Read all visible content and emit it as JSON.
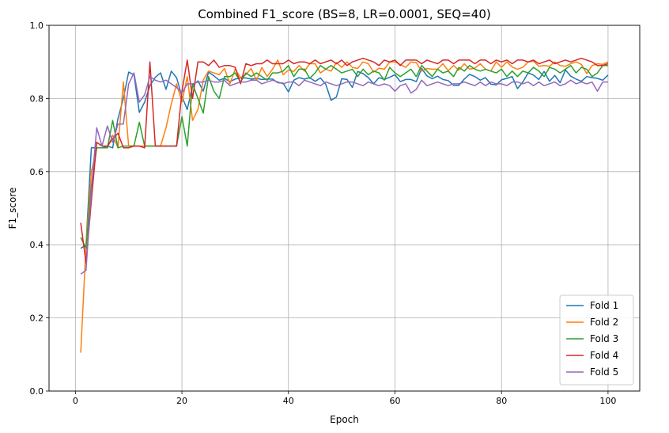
{
  "chart_data": {
    "type": "line",
    "title": "Combined F1_score (BS=8, LR=0.0001, SEQ=40)",
    "xlabel": "Epoch",
    "ylabel": "F1_score",
    "xlim": [
      -4.95,
      105.95
    ],
    "ylim": [
      0.0,
      1.0
    ],
    "xticks": [
      0,
      20,
      40,
      60,
      80,
      100
    ],
    "yticks": [
      0.0,
      0.2,
      0.4,
      0.6,
      0.8,
      1.0
    ],
    "xtick_labels": [
      "0",
      "20",
      "40",
      "60",
      "80",
      "100"
    ],
    "ytick_labels": [
      "0.0",
      "0.2",
      "0.4",
      "0.6",
      "0.8",
      "1.0"
    ],
    "grid": true,
    "legend_position": "bottom-right",
    "series": [
      {
        "name": "Fold 1",
        "color": "#1f77b4",
        "x": [
          1,
          2,
          3,
          4,
          5,
          6,
          7,
          8,
          9,
          10,
          11,
          12,
          13,
          14,
          15,
          16,
          17,
          18,
          19,
          20,
          21,
          22,
          23,
          24,
          25,
          26,
          27,
          28,
          29,
          30,
          31,
          32,
          33,
          34,
          35,
          36,
          37,
          38,
          39,
          40,
          41,
          42,
          43,
          44,
          45,
          46,
          47,
          48,
          49,
          50,
          51,
          52,
          53,
          54,
          55,
          56,
          57,
          58,
          59,
          60,
          61,
          62,
          63,
          64,
          65,
          66,
          67,
          68,
          69,
          70,
          71,
          72,
          73,
          74,
          75,
          76,
          77,
          78,
          79,
          80,
          81,
          82,
          83,
          84,
          85,
          86,
          87,
          88,
          89,
          90,
          91,
          92,
          93,
          94,
          95,
          96,
          97,
          98,
          99,
          100
        ],
        "values": [
          0.39,
          0.4,
          0.665,
          0.665,
          0.665,
          0.67,
          0.665,
          0.745,
          0.8,
          0.872,
          0.865,
          0.762,
          0.79,
          0.835,
          0.858,
          0.87,
          0.825,
          0.875,
          0.857,
          0.805,
          0.77,
          0.835,
          0.848,
          0.82,
          0.872,
          0.862,
          0.85,
          0.855,
          0.846,
          0.853,
          0.856,
          0.856,
          0.853,
          0.855,
          0.852,
          0.853,
          0.853,
          0.843,
          0.842,
          0.818,
          0.85,
          0.857,
          0.853,
          0.857,
          0.847,
          0.856,
          0.839,
          0.795,
          0.804,
          0.854,
          0.852,
          0.83,
          0.874,
          0.868,
          0.857,
          0.84,
          0.857,
          0.852,
          0.858,
          0.865,
          0.846,
          0.852,
          0.852,
          0.846,
          0.882,
          0.862,
          0.854,
          0.861,
          0.852,
          0.849,
          0.836,
          0.836,
          0.853,
          0.866,
          0.86,
          0.85,
          0.857,
          0.839,
          0.837,
          0.851,
          0.855,
          0.86,
          0.827,
          0.845,
          0.87,
          0.864,
          0.852,
          0.874,
          0.847,
          0.863,
          0.843,
          0.878,
          0.861,
          0.853,
          0.847,
          0.86,
          0.857,
          0.855,
          0.85,
          0.864
        ]
      },
      {
        "name": "Fold 2",
        "color": "#ff7f0e",
        "x": [
          1,
          2,
          3,
          4,
          5,
          6,
          7,
          8,
          9,
          10,
          11,
          12,
          13,
          14,
          15,
          16,
          17,
          18,
          19,
          20,
          21,
          22,
          23,
          24,
          25,
          26,
          27,
          28,
          29,
          30,
          31,
          32,
          33,
          34,
          35,
          36,
          37,
          38,
          39,
          40,
          41,
          42,
          43,
          44,
          45,
          46,
          47,
          48,
          49,
          50,
          51,
          52,
          53,
          54,
          55,
          56,
          57,
          58,
          59,
          60,
          61,
          62,
          63,
          64,
          65,
          66,
          67,
          68,
          69,
          70,
          71,
          72,
          73,
          74,
          75,
          76,
          77,
          78,
          79,
          80,
          81,
          82,
          83,
          84,
          85,
          86,
          87,
          88,
          89,
          90,
          91,
          92,
          93,
          94,
          95,
          96,
          97,
          98,
          99,
          100
        ],
        "values": [
          0.105,
          0.4,
          0.6,
          0.665,
          0.665,
          0.665,
          0.7,
          0.665,
          0.845,
          0.67,
          0.67,
          0.67,
          0.67,
          0.67,
          0.67,
          0.67,
          0.72,
          0.785,
          0.84,
          0.79,
          0.86,
          0.74,
          0.77,
          0.85,
          0.875,
          0.87,
          0.865,
          0.882,
          0.84,
          0.88,
          0.857,
          0.865,
          0.882,
          0.85,
          0.885,
          0.86,
          0.88,
          0.905,
          0.865,
          0.878,
          0.874,
          0.89,
          0.875,
          0.895,
          0.895,
          0.87,
          0.88,
          0.875,
          0.898,
          0.885,
          0.9,
          0.885,
          0.882,
          0.9,
          0.895,
          0.872,
          0.883,
          0.88,
          0.9,
          0.9,
          0.893,
          0.885,
          0.9,
          0.898,
          0.875,
          0.882,
          0.88,
          0.88,
          0.895,
          0.876,
          0.89,
          0.877,
          0.895,
          0.88,
          0.883,
          0.895,
          0.88,
          0.875,
          0.9,
          0.885,
          0.9,
          0.886,
          0.88,
          0.885,
          0.9,
          0.902,
          0.888,
          0.89,
          0.888,
          0.9,
          0.89,
          0.888,
          0.895,
          0.9,
          0.893,
          0.868,
          0.89,
          0.895,
          0.893,
          0.9
        ]
      },
      {
        "name": "Fold 3",
        "color": "#2ca02c",
        "x": [
          1,
          2,
          3,
          4,
          5,
          6,
          7,
          8,
          9,
          10,
          11,
          12,
          13,
          14,
          15,
          16,
          17,
          18,
          19,
          20,
          21,
          22,
          23,
          24,
          25,
          26,
          27,
          28,
          29,
          30,
          31,
          32,
          33,
          34,
          35,
          36,
          37,
          38,
          39,
          40,
          41,
          42,
          43,
          44,
          45,
          46,
          47,
          48,
          49,
          50,
          51,
          52,
          53,
          54,
          55,
          56,
          57,
          58,
          59,
          60,
          61,
          62,
          63,
          64,
          65,
          66,
          67,
          68,
          69,
          70,
          71,
          72,
          73,
          74,
          75,
          76,
          77,
          78,
          79,
          80,
          81,
          82,
          83,
          84,
          85,
          86,
          87,
          88,
          89,
          90,
          91,
          92,
          93,
          94,
          95,
          96,
          97,
          98,
          99,
          100
        ],
        "values": [
          0.42,
          0.39,
          0.56,
          0.665,
          0.665,
          0.665,
          0.74,
          0.665,
          0.67,
          0.67,
          0.67,
          0.735,
          0.67,
          0.67,
          0.67,
          0.67,
          0.67,
          0.67,
          0.67,
          0.75,
          0.67,
          0.84,
          0.8,
          0.76,
          0.86,
          0.82,
          0.8,
          0.86,
          0.86,
          0.87,
          0.845,
          0.87,
          0.86,
          0.87,
          0.86,
          0.85,
          0.87,
          0.87,
          0.875,
          0.89,
          0.86,
          0.88,
          0.88,
          0.855,
          0.87,
          0.89,
          0.88,
          0.89,
          0.88,
          0.87,
          0.875,
          0.88,
          0.86,
          0.88,
          0.865,
          0.875,
          0.87,
          0.85,
          0.885,
          0.87,
          0.86,
          0.87,
          0.88,
          0.86,
          0.89,
          0.875,
          0.86,
          0.88,
          0.87,
          0.875,
          0.86,
          0.885,
          0.875,
          0.89,
          0.88,
          0.875,
          0.88,
          0.875,
          0.87,
          0.88,
          0.86,
          0.875,
          0.86,
          0.875,
          0.87,
          0.885,
          0.875,
          0.86,
          0.885,
          0.88,
          0.87,
          0.88,
          0.89,
          0.87,
          0.885,
          0.88,
          0.86,
          0.87,
          0.89,
          0.89
        ]
      },
      {
        "name": "Fold 4",
        "color": "#d62728",
        "x": [
          1,
          2,
          3,
          4,
          5,
          6,
          7,
          8,
          9,
          10,
          11,
          12,
          13,
          14,
          15,
          16,
          17,
          18,
          19,
          20,
          21,
          22,
          23,
          24,
          25,
          26,
          27,
          28,
          29,
          30,
          31,
          32,
          33,
          34,
          35,
          36,
          37,
          38,
          39,
          40,
          41,
          42,
          43,
          44,
          45,
          46,
          47,
          48,
          49,
          50,
          51,
          52,
          53,
          54,
          55,
          56,
          57,
          58,
          59,
          60,
          61,
          62,
          63,
          64,
          65,
          66,
          67,
          68,
          69,
          70,
          71,
          72,
          73,
          74,
          75,
          76,
          77,
          78,
          79,
          80,
          81,
          82,
          83,
          84,
          85,
          86,
          87,
          88,
          89,
          90,
          91,
          92,
          93,
          94,
          95,
          96,
          97,
          98,
          99,
          100
        ],
        "values": [
          0.46,
          0.35,
          0.52,
          0.68,
          0.67,
          0.67,
          0.69,
          0.705,
          0.665,
          0.665,
          0.67,
          0.67,
          0.665,
          0.9,
          0.67,
          0.67,
          0.67,
          0.67,
          0.67,
          0.82,
          0.905,
          0.8,
          0.9,
          0.9,
          0.89,
          0.905,
          0.885,
          0.89,
          0.89,
          0.885,
          0.84,
          0.895,
          0.89,
          0.895,
          0.895,
          0.905,
          0.895,
          0.895,
          0.895,
          0.905,
          0.895,
          0.9,
          0.9,
          0.895,
          0.905,
          0.895,
          0.9,
          0.905,
          0.895,
          0.905,
          0.89,
          0.9,
          0.905,
          0.91,
          0.905,
          0.9,
          0.89,
          0.905,
          0.9,
          0.905,
          0.89,
          0.905,
          0.905,
          0.905,
          0.895,
          0.905,
          0.9,
          0.895,
          0.905,
          0.905,
          0.895,
          0.905,
          0.905,
          0.905,
          0.895,
          0.905,
          0.905,
          0.895,
          0.905,
          0.9,
          0.905,
          0.895,
          0.905,
          0.905,
          0.9,
          0.905,
          0.895,
          0.9,
          0.905,
          0.895,
          0.9,
          0.905,
          0.9,
          0.905,
          0.91,
          0.905,
          0.9,
          0.89,
          0.89,
          0.895
        ]
      },
      {
        "name": "Fold 5",
        "color": "#9467bd",
        "x": [
          1,
          2,
          3,
          4,
          5,
          6,
          7,
          8,
          9,
          10,
          11,
          12,
          13,
          14,
          15,
          16,
          17,
          18,
          19,
          20,
          21,
          22,
          23,
          24,
          25,
          26,
          27,
          28,
          29,
          30,
          31,
          32,
          33,
          34,
          35,
          36,
          37,
          38,
          39,
          40,
          41,
          42,
          43,
          44,
          45,
          46,
          47,
          48,
          49,
          50,
          51,
          52,
          53,
          54,
          55,
          56,
          57,
          58,
          59,
          60,
          61,
          62,
          63,
          64,
          65,
          66,
          67,
          68,
          69,
          70,
          71,
          72,
          73,
          74,
          75,
          76,
          77,
          78,
          79,
          80,
          81,
          82,
          83,
          84,
          85,
          86,
          87,
          88,
          89,
          90,
          91,
          92,
          93,
          94,
          95,
          96,
          97,
          98,
          99,
          100
        ],
        "values": [
          0.32,
          0.33,
          0.55,
          0.72,
          0.67,
          0.725,
          0.68,
          0.73,
          0.73,
          0.84,
          0.87,
          0.79,
          0.81,
          0.86,
          0.85,
          0.845,
          0.85,
          0.84,
          0.83,
          0.815,
          0.84,
          0.84,
          0.845,
          0.845,
          0.85,
          0.845,
          0.845,
          0.85,
          0.835,
          0.84,
          0.845,
          0.845,
          0.85,
          0.85,
          0.84,
          0.845,
          0.85,
          0.845,
          0.84,
          0.845,
          0.845,
          0.835,
          0.85,
          0.845,
          0.84,
          0.835,
          0.845,
          0.84,
          0.835,
          0.84,
          0.845,
          0.845,
          0.84,
          0.835,
          0.845,
          0.84,
          0.835,
          0.84,
          0.835,
          0.82,
          0.835,
          0.84,
          0.815,
          0.825,
          0.85,
          0.835,
          0.84,
          0.845,
          0.84,
          0.835,
          0.84,
          0.84,
          0.845,
          0.84,
          0.835,
          0.845,
          0.835,
          0.845,
          0.84,
          0.84,
          0.835,
          0.845,
          0.845,
          0.84,
          0.845,
          0.835,
          0.845,
          0.835,
          0.84,
          0.845,
          0.835,
          0.84,
          0.85,
          0.84,
          0.845,
          0.84,
          0.845,
          0.82,
          0.845,
          0.845
        ]
      }
    ]
  }
}
